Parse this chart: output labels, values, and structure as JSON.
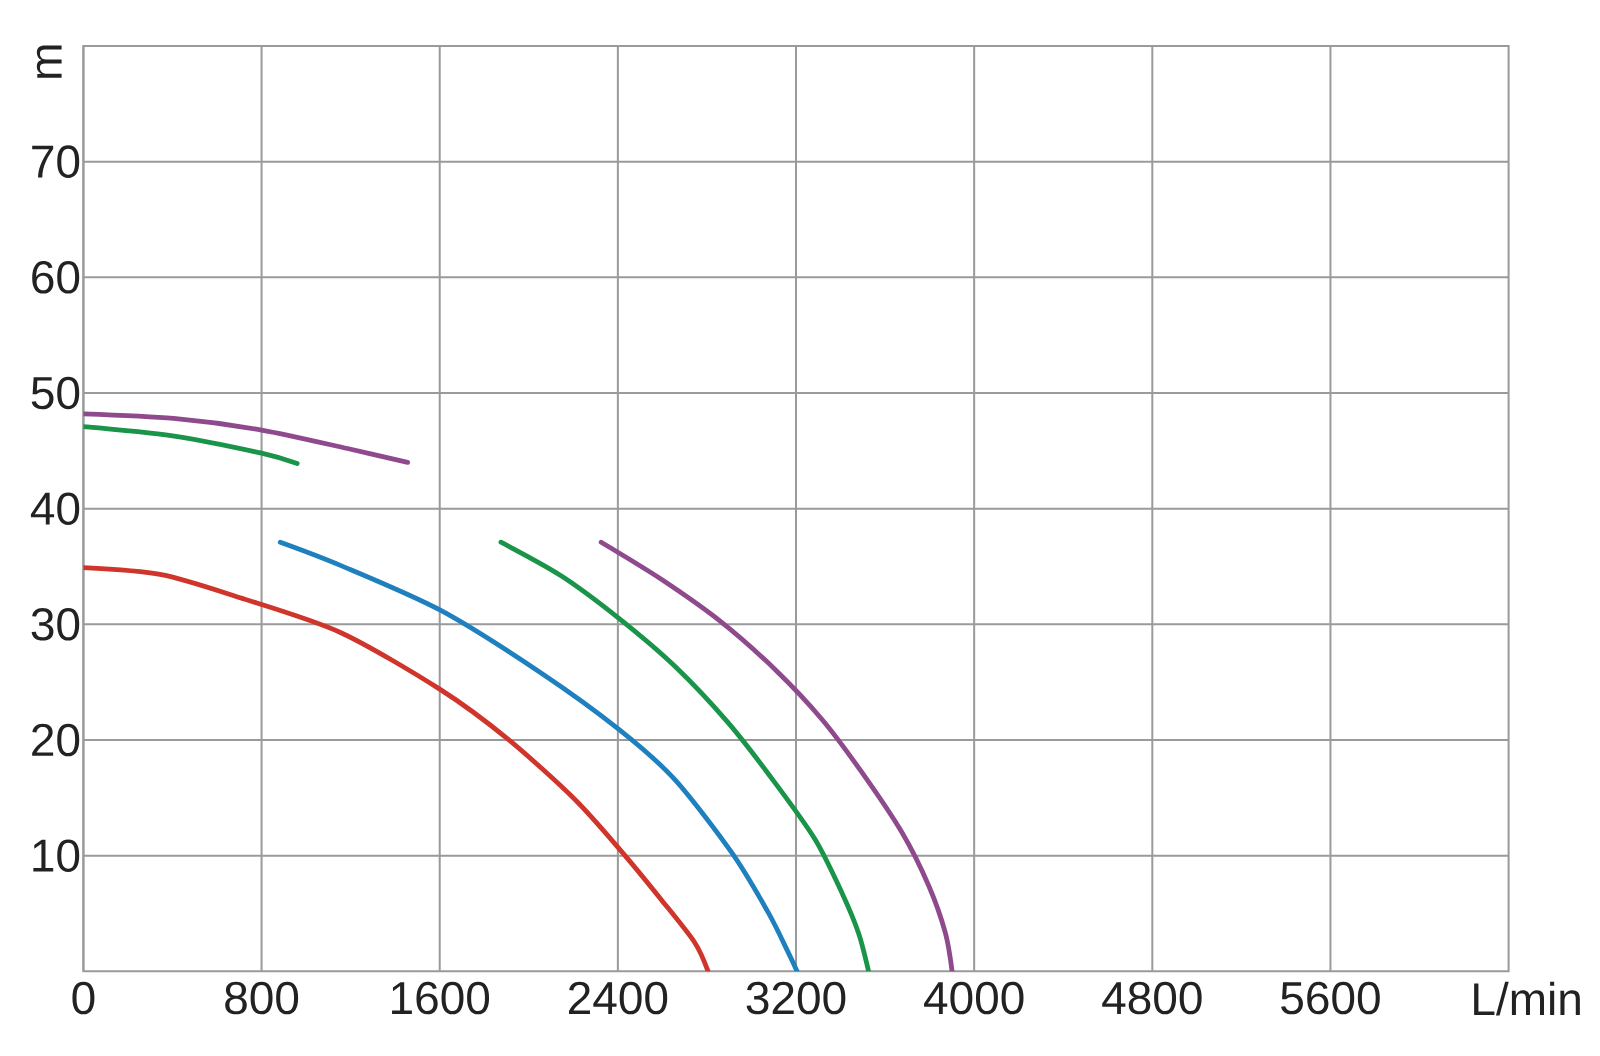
{
  "chart_data": {
    "type": "line",
    "xlabel": "L/min",
    "ylabel": "m",
    "xlim": [
      0,
      6400
    ],
    "ylim": [
      0,
      80
    ],
    "xticks": [
      0,
      800,
      1600,
      2400,
      3200,
      4000,
      4800,
      5600
    ],
    "yticks": [
      10,
      20,
      30,
      40,
      50,
      60,
      70
    ],
    "grid": true,
    "marker": "none",
    "line_style": "solid",
    "series": [
      {
        "color": "#d0352b",
        "x": [
          0,
          350,
          704,
          1154,
          1600,
          1905,
          2205,
          2415,
          2595,
          2745,
          2805
        ],
        "values": [
          34.9,
          34.3,
          32.3,
          29.3,
          24.4,
          20.1,
          14.9,
          10.4,
          6.2,
          2.5,
          0
        ]
      },
      {
        "color": "#1f80c0",
        "x": [
          884,
          1154,
          1605,
          2055,
          2406,
          2655,
          2910,
          3075,
          3166,
          3205
        ],
        "values": [
          37.1,
          35.1,
          31.2,
          25.8,
          20.9,
          16.6,
          10.3,
          5.1,
          1.6,
          0
        ]
      },
      {
        "color": "#1a9448",
        "x": [
          0,
          400,
          800,
          960,
          1400,
          1875,
          2145,
          2406,
          2655,
          2895,
          3106,
          3286,
          3406,
          3481,
          3526
        ],
        "values": [
          47.1,
          46.3,
          44.8,
          43.9,
          null,
          37.1,
          34.2,
          30.5,
          26.4,
          21.5,
          16.3,
          11.4,
          6.8,
          3.3,
          0
        ]
      },
      {
        "color": "#8e4a8c",
        "x": [
          0,
          405,
          800,
          1186,
          1456,
          1900,
          2325,
          2595,
          2865,
          3106,
          3316,
          3496,
          3676,
          3796,
          3871,
          3901
        ],
        "values": [
          48.2,
          47.8,
          46.8,
          45.2,
          44.0,
          null,
          37.1,
          33.9,
          30.2,
          26.1,
          21.8,
          17.2,
          12.0,
          7.4,
          3.3,
          0
        ]
      }
    ]
  }
}
